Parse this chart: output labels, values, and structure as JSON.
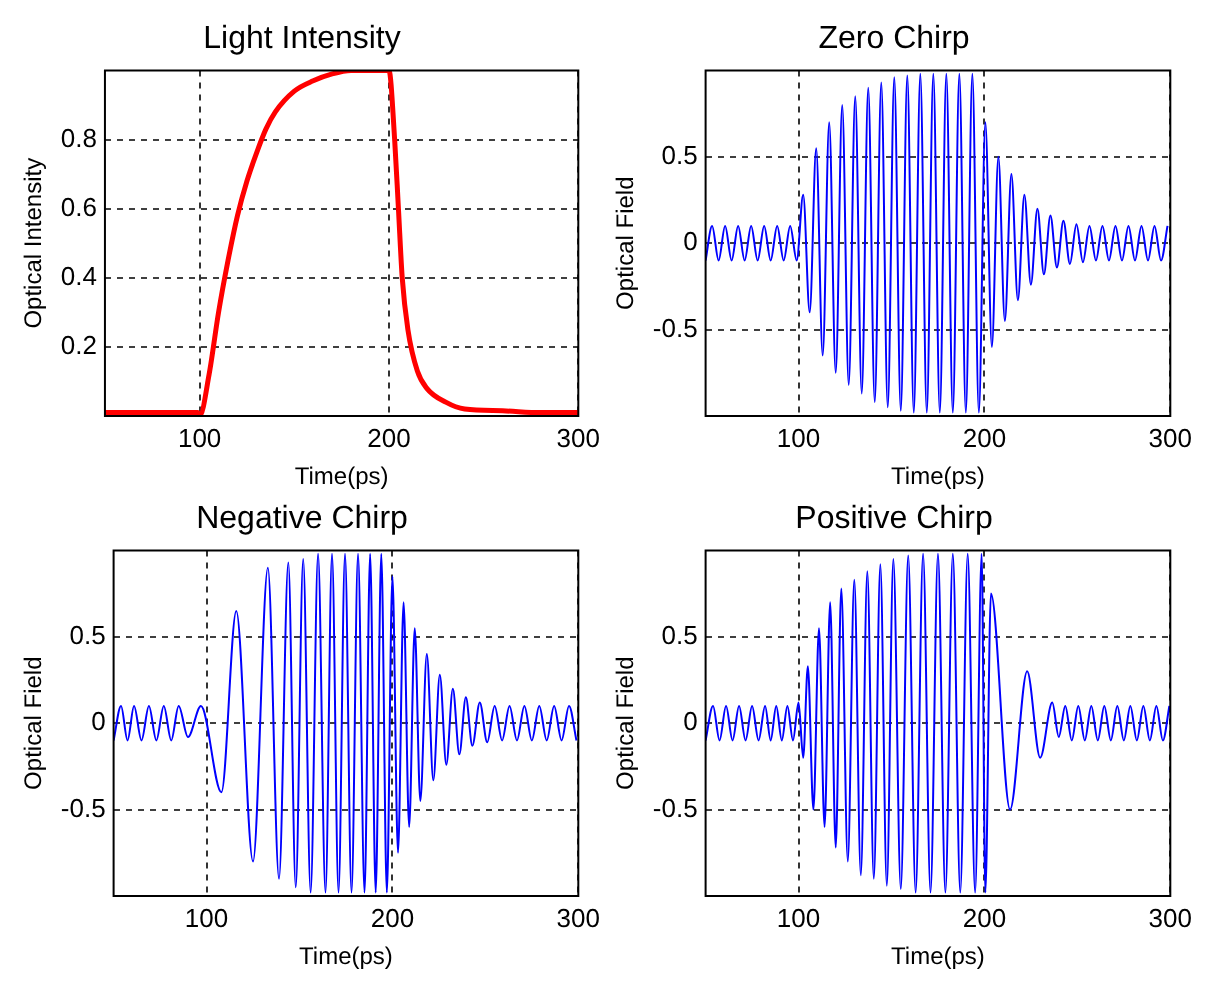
{
  "chart_data": [
    {
      "type": "line",
      "title": "Light Intensity",
      "xlabel": "Time(ps)",
      "ylabel": "Optical Intensity",
      "xlim": [
        50,
        300
      ],
      "ylim": [
        0,
        1
      ],
      "xticks": [
        100,
        200,
        300
      ],
      "yticks": [
        0.2,
        0.4,
        0.6,
        0.8
      ],
      "grid": true,
      "x": [
        50,
        99,
        100,
        105,
        110,
        115,
        120,
        125,
        130,
        135,
        140,
        150,
        160,
        170,
        180,
        199,
        200,
        203,
        205,
        207,
        210,
        215,
        220,
        230,
        240,
        260,
        280,
        300
      ],
      "series": [
        {
          "color": "#ff0000",
          "values": [
            0.01,
            0.01,
            0,
            0.12,
            0.3,
            0.45,
            0.58,
            0.68,
            0.76,
            0.83,
            0.88,
            0.94,
            0.97,
            0.99,
            1,
            1,
            1,
            0.8,
            0.6,
            0.4,
            0.25,
            0.13,
            0.08,
            0.04,
            0.02,
            0.015,
            0.01,
            0.01
          ]
        }
      ]
    },
    {
      "type": "line",
      "title": "Zero Chirp",
      "xlabel": "Time(ps)",
      "ylabel": "Optical Field",
      "xlim": [
        50,
        300
      ],
      "ylim": [
        -1,
        1
      ],
      "xticks": [
        100,
        200,
        300
      ],
      "yticks": [
        -0.5,
        0,
        0.5
      ],
      "grid": true,
      "x": [
        50,
        53.5,
        57,
        60.5,
        64,
        67.5,
        71,
        74.5,
        78,
        81.5,
        85,
        88.5,
        92,
        95.5,
        99,
        102.5,
        106,
        109.5,
        113,
        116.5,
        120,
        123.5,
        127,
        130.5,
        134,
        137.5,
        141,
        144.5,
        148,
        151.5,
        155,
        158.5,
        162,
        165.5,
        169,
        172.5,
        176,
        179.5,
        183,
        186.5,
        190,
        193.5,
        197,
        200.5,
        204,
        207.5,
        211,
        214.5,
        218,
        221.5,
        225,
        228.5,
        232,
        235.5,
        239,
        242.5,
        246,
        249.5,
        253,
        256.5,
        260,
        263.5,
        267,
        270.5,
        274,
        277.5,
        281,
        284.5,
        288,
        291.5,
        295,
        298.5
      ],
      "series": [
        {
          "color": "#0000ff",
          "values": [
            -0.1,
            0.1,
            -0.1,
            0.1,
            -0.1,
            0.1,
            -0.1,
            0.1,
            -0.1,
            0.1,
            -0.1,
            0.1,
            -0.1,
            0.1,
            -0.1,
            0.28,
            -0.4,
            0.55,
            -0.65,
            0.7,
            -0.75,
            0.8,
            -0.82,
            0.85,
            -0.87,
            0.9,
            -0.92,
            0.93,
            -0.95,
            0.96,
            -0.97,
            0.97,
            -0.98,
            0.98,
            -0.98,
            0.98,
            -0.98,
            0.98,
            -0.98,
            0.98,
            -0.98,
            0.98,
            -0.98,
            0.7,
            -0.6,
            0.5,
            -0.45,
            0.4,
            -0.33,
            0.28,
            -0.24,
            0.2,
            -0.18,
            0.16,
            -0.14,
            0.13,
            -0.12,
            0.11,
            -0.11,
            0.1,
            -0.1,
            0.1,
            -0.1,
            0.1,
            -0.1,
            0.1,
            -0.1,
            0.1,
            -0.1,
            0.1,
            -0.1,
            0.1
          ]
        }
      ]
    },
    {
      "type": "line",
      "title": "Negative Chirp",
      "xlabel": "Time(ps)",
      "ylabel": "Optical Field",
      "xlim": [
        50,
        300
      ],
      "ylim": [
        -1,
        1
      ],
      "xticks": [
        100,
        200,
        300
      ],
      "yticks": [
        -0.5,
        0,
        0.5
      ],
      "grid": true,
      "x": [
        50,
        54,
        57.5,
        61,
        65,
        69,
        73,
        77,
        81,
        85,
        90,
        97,
        108,
        116,
        125,
        133,
        139,
        144,
        148,
        152,
        156,
        160,
        164,
        167.5,
        171,
        174.5,
        178,
        181.5,
        185,
        188,
        191,
        194,
        197,
        200,
        203,
        206,
        209,
        212,
        215,
        218.5,
        222,
        225.5,
        229,
        232.5,
        236,
        239.5,
        243,
        247,
        251,
        255,
        259,
        263,
        267,
        271,
        275,
        279,
        283,
        287,
        291,
        295,
        299
      ],
      "series": [
        {
          "color": "#0000ff",
          "values": [
            -0.1,
            0.1,
            -0.1,
            0.1,
            -0.1,
            0.1,
            -0.1,
            0.1,
            -0.1,
            0.1,
            -0.08,
            0.1,
            -0.4,
            0.65,
            -0.8,
            0.9,
            -0.9,
            0.93,
            -0.95,
            0.95,
            -0.98,
            0.98,
            -0.98,
            0.98,
            -0.98,
            0.98,
            -0.98,
            0.98,
            -0.98,
            0.98,
            -0.98,
            0.98,
            -0.98,
            0.85,
            -0.75,
            0.7,
            -0.6,
            0.55,
            -0.45,
            0.4,
            -0.33,
            0.28,
            -0.24,
            0.2,
            -0.18,
            0.15,
            -0.13,
            0.12,
            -0.11,
            0.1,
            -0.1,
            0.1,
            -0.1,
            0.1,
            -0.1,
            0.1,
            -0.1,
            0.1,
            -0.1,
            0.1,
            -0.1
          ]
        }
      ]
    },
    {
      "type": "line",
      "title": "Positive Chirp",
      "xlabel": "Time(ps)",
      "ylabel": "Optical Field",
      "xlim": [
        50,
        300
      ],
      "ylim": [
        -1,
        1
      ],
      "xticks": [
        100,
        200,
        300
      ],
      "yticks": [
        -0.5,
        0,
        0.5
      ],
      "grid": true,
      "x": [
        50,
        54,
        57.5,
        61,
        64.5,
        68,
        71.5,
        75,
        78.5,
        82,
        85,
        88,
        91,
        94,
        97,
        100,
        102.5,
        105,
        108,
        111,
        114,
        117,
        120,
        123,
        126.5,
        130,
        133.5,
        137,
        140.5,
        144,
        147.5,
        151,
        155,
        159,
        163,
        167,
        171,
        175,
        179,
        183,
        187,
        191,
        195,
        198.5,
        200.5,
        203.5,
        213.8,
        223,
        230,
        236.5,
        240,
        243.5,
        247,
        250.5,
        254,
        257.5,
        261,
        264.5,
        268,
        271.5,
        275,
        278.5,
        282,
        285.5,
        289,
        292.5,
        296,
        299.5
      ],
      "series": [
        {
          "color": "#0000ff",
          "values": [
            -0.1,
            0.1,
            -0.1,
            0.1,
            -0.1,
            0.1,
            -0.1,
            0.1,
            -0.1,
            0.1,
            -0.1,
            0.1,
            -0.1,
            0.1,
            -0.1,
            0.12,
            -0.2,
            0.33,
            -0.5,
            0.55,
            -0.6,
            0.7,
            -0.72,
            0.78,
            -0.8,
            0.83,
            -0.88,
            0.88,
            -0.9,
            0.92,
            -0.94,
            0.95,
            -0.96,
            0.97,
            -0.98,
            0.98,
            -0.98,
            0.98,
            -0.98,
            0.98,
            -0.98,
            0.98,
            -0.98,
            0.98,
            -0.98,
            0.75,
            -0.5,
            0.3,
            -0.2,
            0.12,
            -0.08,
            0.1,
            -0.1,
            0.1,
            -0.1,
            0.1,
            -0.1,
            0.1,
            -0.1,
            0.1,
            -0.1,
            0.1,
            -0.1,
            0.1,
            -0.1,
            0.1,
            -0.1,
            0.1
          ]
        }
      ]
    }
  ]
}
